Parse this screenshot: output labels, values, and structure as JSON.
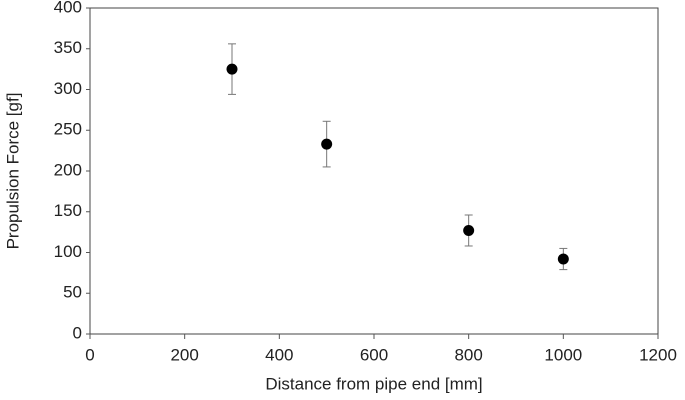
{
  "chart_data": {
    "type": "scatter",
    "x_label": "Distance from pipe end [mm]",
    "y_label": "Propulsion Force [gf]",
    "series": [
      {
        "color": "#000000",
        "x": [
          300,
          500,
          800,
          1000
        ],
        "values": [
          325,
          233,
          127,
          92
        ],
        "errors": [
          31,
          28,
          19,
          13
        ]
      }
    ],
    "xlim": [
      0,
      1200
    ],
    "xticks": [
      0,
      200,
      400,
      600,
      800,
      1000,
      1200
    ],
    "ylim": [
      0,
      400
    ],
    "yticks": [
      0,
      50,
      100,
      150,
      200,
      250,
      300,
      350,
      400
    ],
    "grid": false
  }
}
